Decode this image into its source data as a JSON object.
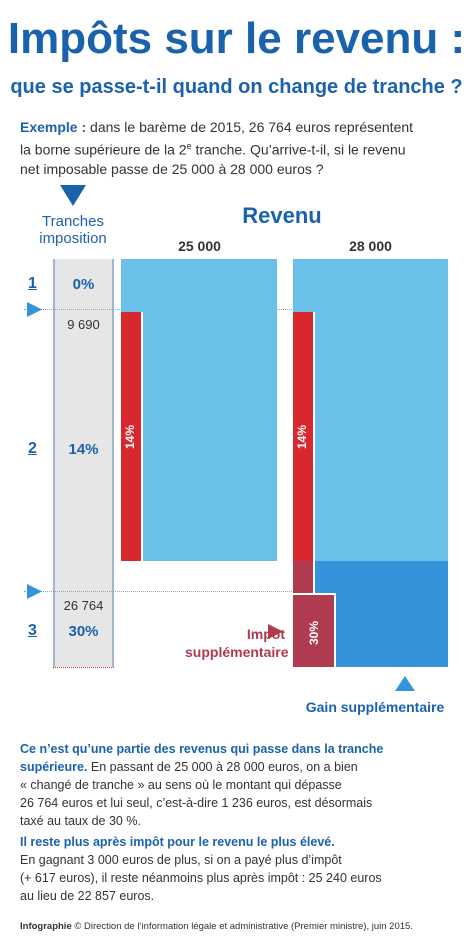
{
  "title": "Impôts sur le revenu :",
  "subtitle": "que se passe-t-il quand on change de tranche ?",
  "intro": {
    "label": "Exemple :",
    "text_1": "dans le barème de 2015, 26 764 euros représentent",
    "text_2a": "la borne supérieure de la 2",
    "text_2_sup": "e",
    "text_2b": " tranche. Qu’arrive-t-il, si le revenu",
    "text_3": "net imposable passe de 25 000 à 28 000 euros ?"
  },
  "tranches_header": {
    "line1": "Tranches",
    "line2": "imposition"
  },
  "revenu_header": "Revenu",
  "columns": {
    "left": "25 000",
    "right": "28 000"
  },
  "tranches": [
    {
      "num": "1",
      "rate": "0%"
    },
    {
      "num": "2",
      "rate": "14%"
    },
    {
      "num": "3",
      "rate": "30%"
    }
  ],
  "bounds": {
    "b1": "9 690",
    "b2": "26 764"
  },
  "bar_labels": {
    "tax14": "14%",
    "tax30": "30%"
  },
  "impot_label": {
    "line1": "Impôt",
    "line2": "supplémentaire"
  },
  "gain_label": "Gain supplémentaire",
  "explanation_1": {
    "bold_1": "Ce n’est qu’une partie des revenus qui passe dans la tranche",
    "bold_2": "supérieure.",
    "text_2": " En passant de 25 000 à 28 000 euros, on a bien",
    "text_3": "« changé de tranche » au sens où le montant qui dépasse",
    "text_4": "26 764 euros et lui seul, c’est-à-dire 1 236 euros, est désormais",
    "text_5": "taxé au taux de 30 %."
  },
  "explanation_2": {
    "bold_1": "Il reste plus après impôt pour le revenu le plus élevé.",
    "text_2": "En gagnant 3 000 euros de plus, si on a payé plus d’impôt",
    "text_3": "(+ 617 euros), il reste néanmoins plus après impôt : 25 240 euros",
    "text_4": "au lieu de 22 857 euros."
  },
  "credit": {
    "bold": "Infographie",
    "text": " © Direction de l’information légale et administrative (Premier ministre), juin 2015."
  },
  "colors": {
    "primary": "#1b62ad",
    "light_blue": "#6ac0e8",
    "mid_blue": "#3494d9",
    "red": "#d9272e",
    "dark_red": "#b03a4f",
    "gray": "#e6e6e6"
  }
}
